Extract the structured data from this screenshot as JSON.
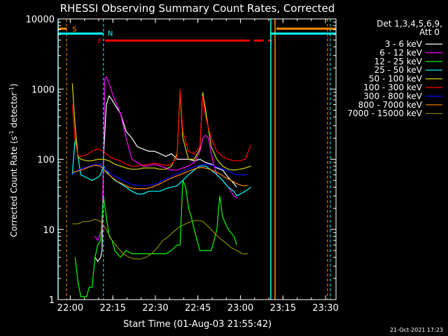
{
  "chart_data": {
    "type": "line",
    "title": "RHESSI Observing Summary Count Rates, Corrected",
    "xlabel": "Start Time (01-Aug-03 21:55:42)",
    "ylabel_main": "Corrected Count Rate (s",
    "ylabel_sup1": "-1",
    "ylabel_mid": " detector",
    "ylabel_sup2": "-1",
    "ylabel_end": ")",
    "yscale": "log",
    "ylim": [
      1,
      10000
    ],
    "xlim_minutes": [
      0,
      98
    ],
    "x_ticks": [
      "22:00",
      "22:15",
      "22:30",
      "22:45",
      "23:00",
      "23:15",
      "23:30"
    ],
    "y_ticks": [
      "1",
      "10",
      "100",
      "1000",
      "10000"
    ],
    "legend_header": [
      "Det 1,3,4,5,6,9,",
      "Att 0"
    ],
    "footer_date": "21-Oct-2021 17:23",
    "flags": [
      {
        "label": "S",
        "color": "#ff8c00"
      },
      {
        "label": "N",
        "color": "#00ffff"
      },
      {
        "label": "F",
        "color": "#ff0000"
      }
    ],
    "series": [
      {
        "name": "3 - 6 keV",
        "color": "#ffffff"
      },
      {
        "name": "6 - 12 keV",
        "color": "#ff00ff"
      },
      {
        "name": "12 - 25 keV",
        "color": "#00ff00"
      },
      {
        "name": "25 - 50 keV",
        "color": "#00ffff"
      },
      {
        "name": "50 - 100 keV",
        "color": "#d4d400"
      },
      {
        "name": "100 - 300 keV",
        "color": "#ff0000"
      },
      {
        "name": "300 - 800 keV",
        "color": "#0000ff"
      },
      {
        "name": "800 - 7000 keV",
        "color": "#ff8c00"
      },
      {
        "name": "7000 - 15000 keV",
        "color": "#8b8b00"
      }
    ],
    "curves": {
      "3 - 6 keV": [
        [
          13,
          4
        ],
        [
          14,
          3.5
        ],
        [
          15,
          4
        ],
        [
          15.5,
          5
        ],
        [
          16,
          100
        ],
        [
          17,
          600
        ],
        [
          18,
          800
        ],
        [
          19,
          700
        ],
        [
          20,
          600
        ],
        [
          22,
          450
        ],
        [
          24,
          250
        ],
        [
          26,
          200
        ],
        [
          28,
          150
        ],
        [
          30,
          140
        ],
        [
          32,
          130
        ],
        [
          34,
          130
        ],
        [
          36,
          120
        ],
        [
          38,
          110
        ],
        [
          40,
          120
        ],
        [
          42,
          100
        ],
        [
          44,
          100
        ],
        [
          46,
          100
        ],
        [
          48,
          95
        ],
        [
          50,
          100
        ],
        [
          52,
          90
        ],
        [
          54,
          85
        ],
        [
          56,
          75
        ],
        [
          58,
          70
        ],
        [
          60,
          55
        ],
        [
          62,
          45
        ],
        [
          63,
          40
        ]
      ],
      "6 - 12 keV": [
        [
          13,
          8
        ],
        [
          14,
          7
        ],
        [
          15,
          9
        ],
        [
          15.5,
          10
        ],
        [
          16,
          100
        ],
        [
          16.5,
          1400
        ],
        [
          17,
          1500
        ],
        [
          18,
          1200
        ],
        [
          19,
          900
        ],
        [
          20,
          700
        ],
        [
          22,
          450
        ],
        [
          24,
          200
        ],
        [
          26,
          100
        ],
        [
          28,
          90
        ],
        [
          30,
          80
        ],
        [
          32,
          80
        ],
        [
          34,
          85
        ],
        [
          36,
          80
        ],
        [
          38,
          75
        ],
        [
          40,
          70
        ],
        [
          42,
          70
        ],
        [
          44,
          75
        ],
        [
          46,
          80
        ],
        [
          48,
          90
        ],
        [
          50,
          130
        ],
        [
          51,
          200
        ],
        [
          52,
          220
        ],
        [
          53,
          200
        ],
        [
          54,
          120
        ],
        [
          55,
          80
        ],
        [
          56,
          60
        ],
        [
          58,
          50
        ],
        [
          60,
          40
        ],
        [
          62,
          30
        ],
        [
          63,
          28
        ]
      ],
      "12 - 25 keV": [
        [
          6,
          4
        ],
        [
          7,
          1.8
        ],
        [
          8,
          1.1
        ],
        [
          9,
          1.1
        ],
        [
          10,
          1.1
        ],
        [
          11,
          1.5
        ],
        [
          12,
          1.5
        ],
        [
          13,
          4
        ],
        [
          14,
          6
        ],
        [
          15,
          7
        ],
        [
          16,
          30
        ],
        [
          17,
          15
        ],
        [
          18,
          8
        ],
        [
          19,
          7
        ],
        [
          20,
          5
        ],
        [
          22,
          4
        ],
        [
          24,
          5
        ],
        [
          26,
          4.5
        ],
        [
          28,
          4.5
        ],
        [
          30,
          4.5
        ],
        [
          32,
          4.5
        ],
        [
          34,
          4.5
        ],
        [
          36,
          4.5
        ],
        [
          38,
          4.5
        ],
        [
          40,
          5
        ],
        [
          42,
          6
        ],
        [
          43,
          6
        ],
        [
          44,
          50
        ],
        [
          45,
          40
        ],
        [
          46,
          20
        ],
        [
          47,
          15
        ],
        [
          48,
          10
        ],
        [
          50,
          5
        ],
        [
          52,
          5
        ],
        [
          54,
          5
        ],
        [
          56,
          10
        ],
        [
          57,
          30
        ],
        [
          58,
          15
        ],
        [
          60,
          10
        ],
        [
          62,
          8
        ],
        [
          63,
          6
        ]
      ],
      "25 - 50 keV": [
        [
          5,
          60
        ],
        [
          6,
          200
        ],
        [
          7,
          110
        ],
        [
          8,
          60
        ],
        [
          10,
          55
        ],
        [
          12,
          50
        ],
        [
          14,
          55
        ],
        [
          15,
          60
        ],
        [
          16,
          80
        ],
        [
          18,
          60
        ],
        [
          20,
          50
        ],
        [
          22,
          45
        ],
        [
          24,
          40
        ],
        [
          26,
          35
        ],
        [
          28,
          32
        ],
        [
          30,
          32
        ],
        [
          32,
          35
        ],
        [
          34,
          35
        ],
        [
          36,
          35
        ],
        [
          38,
          38
        ],
        [
          40,
          40
        ],
        [
          42,
          42
        ],
        [
          44,
          50
        ],
        [
          46,
          60
        ],
        [
          48,
          70
        ],
        [
          50,
          80
        ],
        [
          52,
          80
        ],
        [
          54,
          70
        ],
        [
          56,
          60
        ],
        [
          58,
          50
        ],
        [
          60,
          40
        ],
        [
          62,
          35
        ],
        [
          63,
          30
        ],
        [
          66,
          35
        ],
        [
          68,
          40
        ]
      ],
      "50 - 100 keV": [
        [
          5,
          1200
        ],
        [
          6,
          300
        ],
        [
          7,
          110
        ],
        [
          8,
          100
        ],
        [
          10,
          95
        ],
        [
          12,
          95
        ],
        [
          14,
          100
        ],
        [
          16,
          100
        ],
        [
          18,
          95
        ],
        [
          20,
          85
        ],
        [
          22,
          80
        ],
        [
          24,
          75
        ],
        [
          26,
          72
        ],
        [
          28,
          72
        ],
        [
          30,
          75
        ],
        [
          32,
          75
        ],
        [
          34,
          75
        ],
        [
          36,
          72
        ],
        [
          38,
          72
        ],
        [
          40,
          80
        ],
        [
          42,
          120
        ],
        [
          43,
          900
        ],
        [
          44,
          200
        ],
        [
          46,
          100
        ],
        [
          48,
          100
        ],
        [
          50,
          140
        ],
        [
          51,
          900
        ],
        [
          52,
          500
        ],
        [
          54,
          150
        ],
        [
          56,
          100
        ],
        [
          58,
          80
        ],
        [
          60,
          72
        ],
        [
          62,
          70
        ],
        [
          64,
          72
        ],
        [
          66,
          75
        ],
        [
          68,
          80
        ]
      ],
      "100 - 300 keV": [
        [
          5,
          600
        ],
        [
          6,
          180
        ],
        [
          7,
          115
        ],
        [
          8,
          110
        ],
        [
          10,
          115
        ],
        [
          12,
          130
        ],
        [
          14,
          140
        ],
        [
          16,
          130
        ],
        [
          18,
          110
        ],
        [
          20,
          100
        ],
        [
          22,
          95
        ],
        [
          24,
          85
        ],
        [
          26,
          80
        ],
        [
          28,
          80
        ],
        [
          30,
          82
        ],
        [
          32,
          85
        ],
        [
          34,
          88
        ],
        [
          36,
          85
        ],
        [
          38,
          82
        ],
        [
          40,
          85
        ],
        [
          42,
          110
        ],
        [
          43,
          1000
        ],
        [
          44,
          250
        ],
        [
          46,
          130
        ],
        [
          48,
          120
        ],
        [
          50,
          150
        ],
        [
          51,
          800
        ],
        [
          52,
          400
        ],
        [
          54,
          200
        ],
        [
          56,
          130
        ],
        [
          58,
          110
        ],
        [
          60,
          100
        ],
        [
          62,
          95
        ],
        [
          64,
          95
        ],
        [
          66,
          100
        ],
        [
          68,
          160
        ]
      ],
      "300 - 800 keV": [
        [
          5,
          60
        ],
        [
          7,
          70
        ],
        [
          9,
          75
        ],
        [
          11,
          80
        ],
        [
          13,
          85
        ],
        [
          15,
          85
        ],
        [
          17,
          70
        ],
        [
          19,
          60
        ],
        [
          21,
          55
        ],
        [
          23,
          50
        ],
        [
          25,
          45
        ],
        [
          27,
          43
        ],
        [
          29,
          42
        ],
        [
          31,
          42
        ],
        [
          33,
          43
        ],
        [
          35,
          45
        ],
        [
          37,
          50
        ],
        [
          39,
          55
        ],
        [
          41,
          60
        ],
        [
          43,
          65
        ],
        [
          45,
          70
        ],
        [
          47,
          75
        ],
        [
          49,
          80
        ],
        [
          51,
          85
        ],
        [
          53,
          85
        ],
        [
          55,
          80
        ],
        [
          57,
          75
        ],
        [
          59,
          70
        ],
        [
          61,
          65
        ],
        [
          63,
          60
        ],
        [
          65,
          60
        ],
        [
          67,
          60
        ]
      ],
      "800 - 7000 keV": [
        [
          5,
          65
        ],
        [
          7,
          68
        ],
        [
          9,
          72
        ],
        [
          11,
          78
        ],
        [
          13,
          82
        ],
        [
          15,
          80
        ],
        [
          17,
          65
        ],
        [
          19,
          55
        ],
        [
          21,
          48
        ],
        [
          23,
          44
        ],
        [
          25,
          40
        ],
        [
          27,
          38
        ],
        [
          29,
          38
        ],
        [
          31,
          38
        ],
        [
          33,
          40
        ],
        [
          35,
          43
        ],
        [
          37,
          47
        ],
        [
          39,
          52
        ],
        [
          41,
          56
        ],
        [
          43,
          60
        ],
        [
          45,
          65
        ],
        [
          47,
          70
        ],
        [
          49,
          75
        ],
        [
          51,
          76
        ],
        [
          53,
          73
        ],
        [
          55,
          68
        ],
        [
          57,
          62
        ],
        [
          59,
          55
        ],
        [
          61,
          50
        ],
        [
          63,
          45
        ],
        [
          65,
          42
        ],
        [
          67,
          42
        ]
      ],
      "7000 - 15000 keV": [
        [
          5,
          12
        ],
        [
          7,
          12
        ],
        [
          9,
          13
        ],
        [
          11,
          13
        ],
        [
          13,
          14
        ],
        [
          15,
          13
        ],
        [
          17,
          10
        ],
        [
          19,
          7
        ],
        [
          21,
          5.5
        ],
        [
          23,
          4.5
        ],
        [
          25,
          4
        ],
        [
          27,
          3.8
        ],
        [
          29,
          3.8
        ],
        [
          31,
          4
        ],
        [
          33,
          4.5
        ],
        [
          35,
          5.5
        ],
        [
          37,
          7
        ],
        [
          39,
          8
        ],
        [
          41,
          9.5
        ],
        [
          43,
          11
        ],
        [
          45,
          12
        ],
        [
          47,
          13
        ],
        [
          49,
          13.5
        ],
        [
          51,
          13
        ],
        [
          53,
          11
        ],
        [
          55,
          9
        ],
        [
          57,
          7.5
        ],
        [
          59,
          6.5
        ],
        [
          61,
          5.5
        ],
        [
          63,
          5
        ],
        [
          65,
          4.5
        ],
        [
          67,
          4.5
        ]
      ]
    }
  }
}
